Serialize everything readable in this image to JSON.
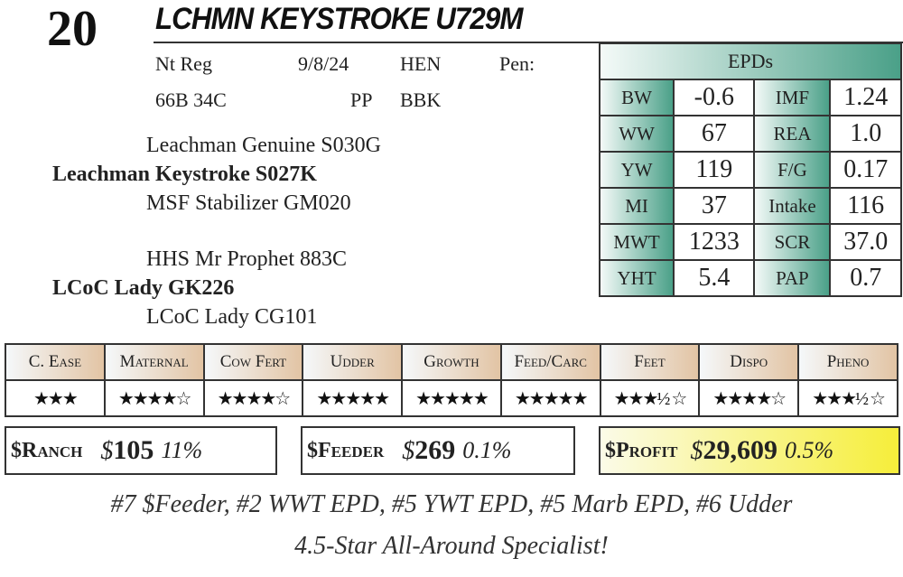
{
  "lot": "20",
  "title": "LCHMN KEYSTROKE U729M",
  "info": {
    "reg": "Nt Reg",
    "date": "9/8/24",
    "tattoo": "HEN",
    "pen": "Pen:",
    "id": "66B 34C",
    "pp": "PP",
    "color": "BBK"
  },
  "pedigree": {
    "sire_sire": "Leachman Genuine S030G",
    "sire": "Leachman Keystroke S027K",
    "sire_dam": "MSF Stabilizer GM020",
    "dam_sire": "HHS Mr Prophet 883C",
    "dam": "LCoC Lady GK226",
    "dam_dam": "LCoC Lady CG101"
  },
  "epds": {
    "header": "EPDs",
    "rows": [
      [
        "BW",
        "-0.6",
        "IMF",
        "1.24"
      ],
      [
        "WW",
        "67",
        "REA",
        "1.0"
      ],
      [
        "YW",
        "119",
        "F/G",
        "0.17"
      ],
      [
        "MI",
        "37",
        "Intake",
        "116"
      ],
      [
        "MWT",
        "1233",
        "SCR",
        "37.0"
      ],
      [
        "YHT",
        "5.4",
        "PAP",
        "0.7"
      ]
    ]
  },
  "ratings": [
    {
      "label": "C. Ease",
      "stars": "★★★",
      "value": 3
    },
    {
      "label": "Maternal",
      "stars": "★★★★☆",
      "value": 4
    },
    {
      "label": "Cow Fert",
      "stars": "★★★★☆",
      "value": 4
    },
    {
      "label": "Udder",
      "stars": "★★★★★",
      "value": 5
    },
    {
      "label": "Growth",
      "stars": "★★★★★",
      "value": 5
    },
    {
      "label": "Feed/Carc",
      "stars": "★★★★★",
      "value": 5
    },
    {
      "label": "Feet",
      "stars": "★★★½ ☆",
      "value": 3.5
    },
    {
      "label": "Dispo",
      "stars": "★★★★☆",
      "value": 4
    },
    {
      "label": "Pheno",
      "stars": "★★★½ ☆",
      "value": 3.5
    }
  ],
  "indexes": {
    "ranch": {
      "label": "$Ranch",
      "cur": "$",
      "value": "105",
      "pct": "11%"
    },
    "feeder": {
      "label": "$Feeder",
      "cur": "$",
      "value": "269",
      "pct": "0.1%"
    },
    "profit": {
      "label": "$Profit",
      "cur": "$",
      "value": "29,609",
      "pct": "0.5%"
    }
  },
  "notes": [
    "#7 $Feeder, #2 WWT EPD, #5 YWT EPD, #5 Marb EPD, #6 Udder",
    "4.5-Star All-Around Specialist!"
  ]
}
